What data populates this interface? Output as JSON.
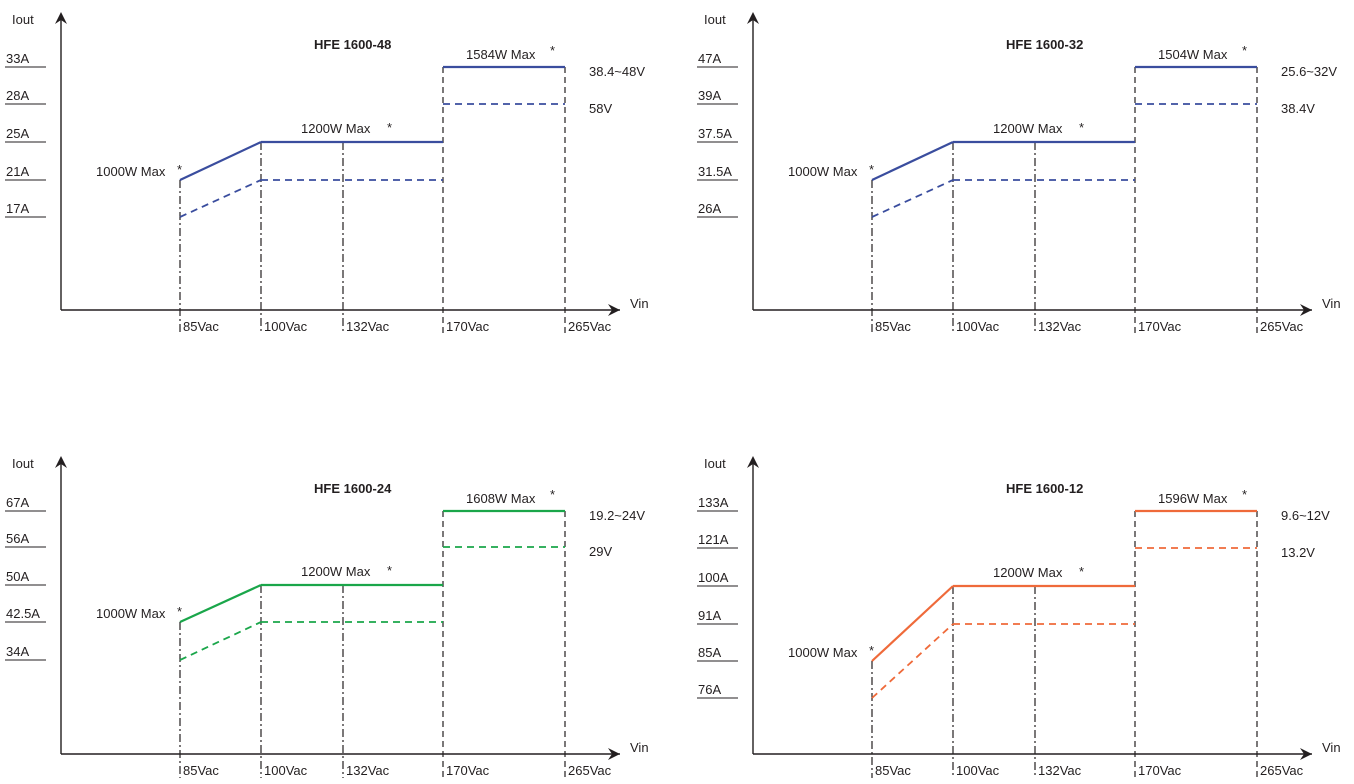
{
  "chart_data": [
    {
      "type": "line",
      "title": "HFE 1600-48",
      "xlabel": "Vin",
      "ylabel": "Iout",
      "color": "#3a4d9e",
      "categories": [
        "85Vac",
        "100Vac",
        "132Vac",
        "170Vac",
        "265Vac"
      ],
      "y_ticks": [
        "33A",
        "28A",
        "25A",
        "21A",
        "17A"
      ],
      "series": [
        {
          "style": "solid",
          "segments": [
            {
              "x": [
                "85Vac",
                "100Vac"
              ],
              "y": [
                "21A",
                "25A"
              ]
            },
            {
              "x": [
                "100Vac",
                "170Vac"
              ],
              "y": [
                "25A",
                "25A"
              ]
            },
            {
              "x": [
                "170Vac",
                "265Vac"
              ],
              "y": [
                "33A",
                "33A"
              ]
            }
          ]
        },
        {
          "style": "dashed",
          "segments": [
            {
              "x": [
                "85Vac",
                "100Vac"
              ],
              "y": [
                "17A",
                "21A"
              ]
            },
            {
              "x": [
                "100Vac",
                "170Vac"
              ],
              "y": [
                "21A",
                "21A"
              ]
            },
            {
              "x": [
                "170Vac",
                "265Vac"
              ],
              "y": [
                "28A",
                "28A"
              ]
            }
          ]
        }
      ],
      "annotations": {
        "low": "1000W Max",
        "mid": "1200W Max",
        "high": "1584W Max",
        "star": "*"
      },
      "range_labels": [
        "38.4~48V",
        "58V"
      ]
    },
    {
      "type": "line",
      "title": "HFE 1600-32",
      "xlabel": "Vin",
      "ylabel": "Iout",
      "color": "#3a4d9e",
      "categories": [
        "85Vac",
        "100Vac",
        "132Vac",
        "170Vac",
        "265Vac"
      ],
      "y_ticks": [
        "47A",
        "39A",
        "37.5A",
        "31.5A",
        "26A"
      ],
      "series": [
        {
          "style": "solid",
          "segments": [
            {
              "x": [
                "85Vac",
                "100Vac"
              ],
              "y": [
                "31.5A",
                "37.5A"
              ]
            },
            {
              "x": [
                "100Vac",
                "170Vac"
              ],
              "y": [
                "37.5A",
                "37.5A"
              ]
            },
            {
              "x": [
                "170Vac",
                "265Vac"
              ],
              "y": [
                "47A",
                "47A"
              ]
            }
          ]
        },
        {
          "style": "dashed",
          "segments": [
            {
              "x": [
                "85Vac",
                "100Vac"
              ],
              "y": [
                "26A",
                "31.5A"
              ]
            },
            {
              "x": [
                "100Vac",
                "170Vac"
              ],
              "y": [
                "31.5A",
                "31.5A"
              ]
            },
            {
              "x": [
                "170Vac",
                "265Vac"
              ],
              "y": [
                "39A",
                "39A"
              ]
            }
          ]
        }
      ],
      "annotations": {
        "low": "1000W Max",
        "mid": "1200W Max",
        "high": "1504W Max",
        "star": "*"
      },
      "range_labels": [
        "25.6~32V",
        "38.4V"
      ]
    },
    {
      "type": "line",
      "title": "HFE 1600-24",
      "xlabel": "Vin",
      "ylabel": "Iout",
      "color": "#1aa64a",
      "categories": [
        "85Vac",
        "100Vac",
        "132Vac",
        "170Vac",
        "265Vac"
      ],
      "y_ticks": [
        "67A",
        "56A",
        "50A",
        "42.5A",
        "34A"
      ],
      "series": [
        {
          "style": "solid",
          "segments": [
            {
              "x": [
                "85Vac",
                "100Vac"
              ],
              "y": [
                "42.5A",
                "50A"
              ]
            },
            {
              "x": [
                "100Vac",
                "170Vac"
              ],
              "y": [
                "50A",
                "50A"
              ]
            },
            {
              "x": [
                "170Vac",
                "265Vac"
              ],
              "y": [
                "67A",
                "67A"
              ]
            }
          ]
        },
        {
          "style": "dashed",
          "segments": [
            {
              "x": [
                "85Vac",
                "100Vac"
              ],
              "y": [
                "34A",
                "42.5A"
              ]
            },
            {
              "x": [
                "100Vac",
                "170Vac"
              ],
              "y": [
                "42.5A",
                "42.5A"
              ]
            },
            {
              "x": [
                "170Vac",
                "265Vac"
              ],
              "y": [
                "56A",
                "56A"
              ]
            }
          ]
        }
      ],
      "annotations": {
        "low": "1000W Max",
        "mid": "1200W Max",
        "high": "1608W Max",
        "star": "*"
      },
      "range_labels": [
        "19.2~24V",
        "29V"
      ]
    },
    {
      "type": "line",
      "title": "HFE 1600-12",
      "xlabel": "Vin",
      "ylabel": "Iout",
      "color": "#ef6a3a",
      "categories": [
        "85Vac",
        "100Vac",
        "132Vac",
        "170Vac",
        "265Vac"
      ],
      "y_ticks": [
        "133A",
        "121A",
        "100A",
        "91A",
        "85A",
        "76A"
      ],
      "series": [
        {
          "style": "solid",
          "segments": [
            {
              "x": [
                "85Vac",
                "100Vac"
              ],
              "y": [
                "85A",
                "100A"
              ]
            },
            {
              "x": [
                "100Vac",
                "170Vac"
              ],
              "y": [
                "100A",
                "100A"
              ]
            },
            {
              "x": [
                "170Vac",
                "265Vac"
              ],
              "y": [
                "133A",
                "133A"
              ]
            }
          ]
        },
        {
          "style": "dashed",
          "segments": [
            {
              "x": [
                "85Vac",
                "100Vac"
              ],
              "y": [
                "76A",
                "91A"
              ]
            },
            {
              "x": [
                "100Vac",
                "170Vac"
              ],
              "y": [
                "91A",
                "91A"
              ]
            },
            {
              "x": [
                "170Vac",
                "265Vac"
              ],
              "y": [
                "121A",
                "121A"
              ]
            }
          ]
        }
      ],
      "annotations": {
        "low": "1000W Max",
        "mid": "1200W Max",
        "high": "1596W Max",
        "star": "*"
      },
      "range_labels": [
        "9.6~12V",
        "13.2V"
      ]
    }
  ]
}
